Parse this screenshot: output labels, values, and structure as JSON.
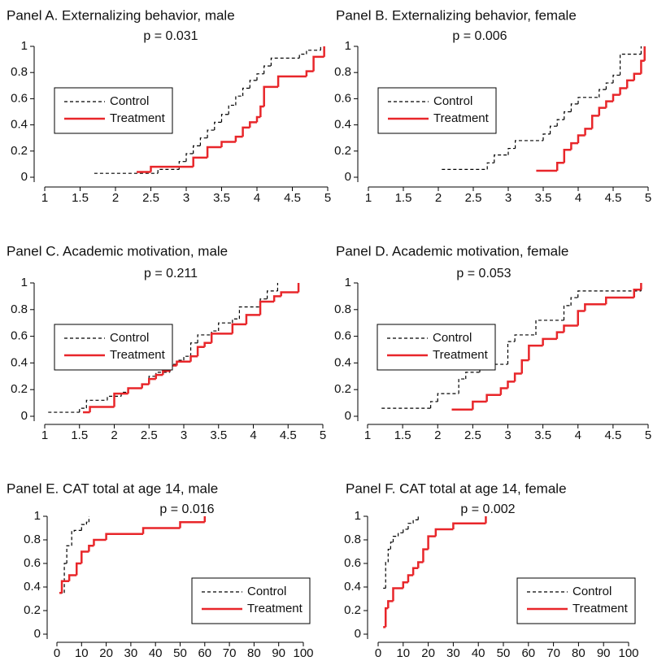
{
  "chart_data": [
    {
      "type": "line",
      "step": true,
      "title": "Panel A. Externalizing behavior, male",
      "annotation": "p = 0.031",
      "xlim": [
        1,
        5
      ],
      "xticks": [
        1,
        1.5,
        2,
        2.5,
        3,
        3.5,
        4,
        4.5,
        5
      ],
      "ylim": [
        0,
        1
      ],
      "yticks": [
        0,
        0.2,
        0.4,
        0.6,
        0.8,
        1
      ],
      "legend": "top-left",
      "series": [
        {
          "name": "Control",
          "color": "#000000",
          "linestyle": "dashed",
          "x": [
            1.7,
            2.6,
            2.9,
            3.0,
            3.1,
            3.2,
            3.3,
            3.4,
            3.5,
            3.6,
            3.7,
            3.8,
            3.9,
            4.0,
            4.1,
            4.2,
            4.6,
            4.7,
            4.9
          ],
          "values": [
            0.03,
            0.06,
            0.12,
            0.18,
            0.24,
            0.3,
            0.36,
            0.42,
            0.48,
            0.55,
            0.62,
            0.68,
            0.74,
            0.79,
            0.85,
            0.91,
            0.94,
            0.97,
            1
          ]
        },
        {
          "name": "Treatment",
          "color": "#e8262a",
          "linestyle": "solid",
          "x": [
            2.3,
            2.5,
            3.1,
            3.3,
            3.5,
            3.7,
            3.8,
            3.9,
            4.0,
            4.05,
            4.1,
            4.3,
            4.7,
            4.8,
            4.95
          ],
          "values": [
            0.04,
            0.08,
            0.15,
            0.23,
            0.27,
            0.31,
            0.38,
            0.42,
            0.46,
            0.54,
            0.69,
            0.77,
            0.81,
            0.92,
            1
          ]
        }
      ]
    },
    {
      "type": "line",
      "step": true,
      "title": "Panel B. Externalizing behavior, female",
      "annotation": "p = 0.006",
      "xlim": [
        1,
        5
      ],
      "xticks": [
        1,
        1.5,
        2,
        2.5,
        3,
        3.5,
        4,
        4.5,
        5
      ],
      "ylim": [
        0,
        1
      ],
      "yticks": [
        0,
        0.2,
        0.4,
        0.6,
        0.8,
        1
      ],
      "legend": "top-left",
      "series": [
        {
          "name": "Control",
          "color": "#000000",
          "linestyle": "dashed",
          "x": [
            2.05,
            2.7,
            2.8,
            3.0,
            3.1,
            3.5,
            3.6,
            3.7,
            3.8,
            3.9,
            4.0,
            4.3,
            4.4,
            4.5,
            4.6,
            4.9
          ],
          "values": [
            0.06,
            0.11,
            0.17,
            0.22,
            0.28,
            0.33,
            0.39,
            0.44,
            0.5,
            0.56,
            0.61,
            0.67,
            0.72,
            0.78,
            0.94,
            1
          ]
        },
        {
          "name": "Treatment",
          "color": "#e8262a",
          "linestyle": "solid",
          "x": [
            3.4,
            3.7,
            3.8,
            3.9,
            4.0,
            4.1,
            4.2,
            4.3,
            4.4,
            4.5,
            4.6,
            4.7,
            4.8,
            4.9,
            4.95
          ],
          "values": [
            0.05,
            0.11,
            0.21,
            0.26,
            0.32,
            0.37,
            0.47,
            0.53,
            0.58,
            0.63,
            0.68,
            0.74,
            0.79,
            0.89,
            1
          ]
        }
      ]
    },
    {
      "type": "line",
      "step": true,
      "title": "Panel C. Academic motivation, male",
      "annotation": "p = 0.211",
      "xlim": [
        1,
        5
      ],
      "xticks": [
        1,
        1.5,
        2,
        2.5,
        3,
        3.5,
        4,
        4.5,
        5
      ],
      "ylim": [
        0,
        1
      ],
      "yticks": [
        0,
        0.2,
        0.4,
        0.6,
        0.8,
        1
      ],
      "legend": "top-left",
      "series": [
        {
          "name": "Control",
          "color": "#000000",
          "linestyle": "dashed",
          "x": [
            1.05,
            1.5,
            1.6,
            1.9,
            2.1,
            2.2,
            2.4,
            2.5,
            2.6,
            2.8,
            2.9,
            3.0,
            3.1,
            3.2,
            3.4,
            3.5,
            3.7,
            3.8,
            4.1,
            4.2,
            4.35
          ],
          "values": [
            0.03,
            0.06,
            0.12,
            0.15,
            0.18,
            0.21,
            0.24,
            0.3,
            0.33,
            0.39,
            0.42,
            0.45,
            0.55,
            0.61,
            0.64,
            0.7,
            0.73,
            0.82,
            0.88,
            0.94,
            1
          ]
        },
        {
          "name": "Treatment",
          "color": "#e8262a",
          "linestyle": "solid",
          "x": [
            1.55,
            1.65,
            2.0,
            2.2,
            2.4,
            2.5,
            2.6,
            2.7,
            2.8,
            2.9,
            3.1,
            3.2,
            3.3,
            3.4,
            3.7,
            3.9,
            4.1,
            4.3,
            4.4,
            4.65
          ],
          "values": [
            0.03,
            0.07,
            0.17,
            0.21,
            0.24,
            0.28,
            0.31,
            0.34,
            0.38,
            0.41,
            0.45,
            0.52,
            0.55,
            0.62,
            0.69,
            0.76,
            0.86,
            0.9,
            0.93,
            1
          ]
        }
      ]
    },
    {
      "type": "line",
      "step": true,
      "title": "Panel D. Academic motivation, female",
      "annotation": "p = 0.053",
      "xlim": [
        1,
        5
      ],
      "xticks": [
        1,
        1.5,
        2,
        2.5,
        3,
        3.5,
        4,
        4.5,
        5
      ],
      "ylim": [
        0,
        1
      ],
      "yticks": [
        0,
        0.2,
        0.4,
        0.6,
        0.8,
        1
      ],
      "legend": "top-left",
      "series": [
        {
          "name": "Control",
          "color": "#000000",
          "linestyle": "dashed",
          "x": [
            1.2,
            1.9,
            2.0,
            2.3,
            2.4,
            2.6,
            3.0,
            3.1,
            3.4,
            3.8,
            3.9,
            4.0,
            4.9
          ],
          "values": [
            0.06,
            0.11,
            0.17,
            0.28,
            0.33,
            0.39,
            0.56,
            0.61,
            0.72,
            0.83,
            0.89,
            0.94,
            1
          ]
        },
        {
          "name": "Treatment",
          "color": "#e8262a",
          "linestyle": "solid",
          "x": [
            2.2,
            2.5,
            2.7,
            2.9,
            3.0,
            3.1,
            3.2,
            3.3,
            3.5,
            3.7,
            3.8,
            4.0,
            4.1,
            4.4,
            4.8,
            4.9
          ],
          "values": [
            0.05,
            0.11,
            0.16,
            0.21,
            0.26,
            0.32,
            0.42,
            0.53,
            0.58,
            0.63,
            0.68,
            0.79,
            0.84,
            0.89,
            0.95,
            1
          ]
        }
      ]
    },
    {
      "type": "line",
      "step": true,
      "title": "Panel E. CAT total at age 14, male",
      "annotation": "p = 0.016",
      "xlim": [
        0,
        100
      ],
      "xticks": [
        0,
        10,
        20,
        30,
        40,
        50,
        60,
        70,
        80,
        90,
        100
      ],
      "ylim": [
        0,
        1
      ],
      "yticks": [
        0,
        0.2,
        0.4,
        0.6,
        0.8,
        1
      ],
      "legend": "bottom-right",
      "series": [
        {
          "name": "Control",
          "color": "#000000",
          "linestyle": "dashed",
          "x": [
            1,
            3,
            4,
            6,
            7,
            10,
            12,
            13
          ],
          "values": [
            0.35,
            0.6,
            0.75,
            0.87,
            0.88,
            0.93,
            0.95,
            1
          ]
        },
        {
          "name": "Treatment",
          "color": "#e8262a",
          "linestyle": "solid",
          "x": [
            1,
            2,
            5,
            8,
            10,
            13,
            15,
            20,
            35,
            50,
            60
          ],
          "values": [
            0.35,
            0.45,
            0.5,
            0.6,
            0.7,
            0.75,
            0.8,
            0.85,
            0.9,
            0.95,
            1
          ]
        }
      ]
    },
    {
      "type": "line",
      "step": true,
      "title": "Panel F. CAT total at age 14, female",
      "annotation": "p = 0.002",
      "xlim": [
        0,
        100
      ],
      "xticks": [
        0,
        10,
        20,
        30,
        40,
        50,
        60,
        70,
        80,
        90,
        100
      ],
      "ylim": [
        0,
        1
      ],
      "yticks": [
        0,
        0.2,
        0.4,
        0.6,
        0.8,
        1
      ],
      "legend": "bottom-right",
      "series": [
        {
          "name": "Control",
          "color": "#000000",
          "linestyle": "dashed",
          "x": [
            2,
            3,
            4,
            5,
            6,
            8,
            10,
            12,
            14,
            16
          ],
          "values": [
            0.39,
            0.61,
            0.72,
            0.78,
            0.83,
            0.86,
            0.89,
            0.94,
            0.97,
            1
          ]
        },
        {
          "name": "Treatment",
          "color": "#e8262a",
          "linestyle": "solid",
          "x": [
            2,
            3,
            4,
            6,
            10,
            12,
            14,
            16,
            18,
            20,
            23,
            30,
            43
          ],
          "values": [
            0.06,
            0.22,
            0.28,
            0.39,
            0.44,
            0.5,
            0.56,
            0.61,
            0.72,
            0.83,
            0.89,
            0.94,
            1
          ]
        }
      ]
    }
  ]
}
